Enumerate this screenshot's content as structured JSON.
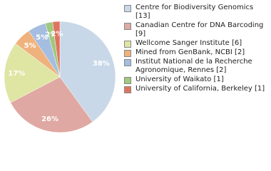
{
  "chart_data": {
    "type": "pie",
    "categories": [
      "Centre for Biodiversity Genomics [13]",
      "Canadian Centre for DNA Barcoding [9]",
      "Wellcome Sanger Institute [6]",
      "Mined from GenBank, NCBI [2]",
      "Institut National de la Recherche Agronomique, Rennes [2]",
      "University of Waikato [1]",
      "University of California, Berkeley [1]"
    ],
    "values": [
      38,
      26,
      17,
      5,
      5,
      2,
      2
    ],
    "value_labels": [
      "38%",
      "26%",
      "17%",
      "5%",
      "5%",
      "2%",
      "2%"
    ],
    "colors": [
      "#c9d8e8",
      "#e0a8a2",
      "#dfe5a3",
      "#f0b27c",
      "#a4bde0",
      "#a0c87e",
      "#e0735f"
    ]
  }
}
